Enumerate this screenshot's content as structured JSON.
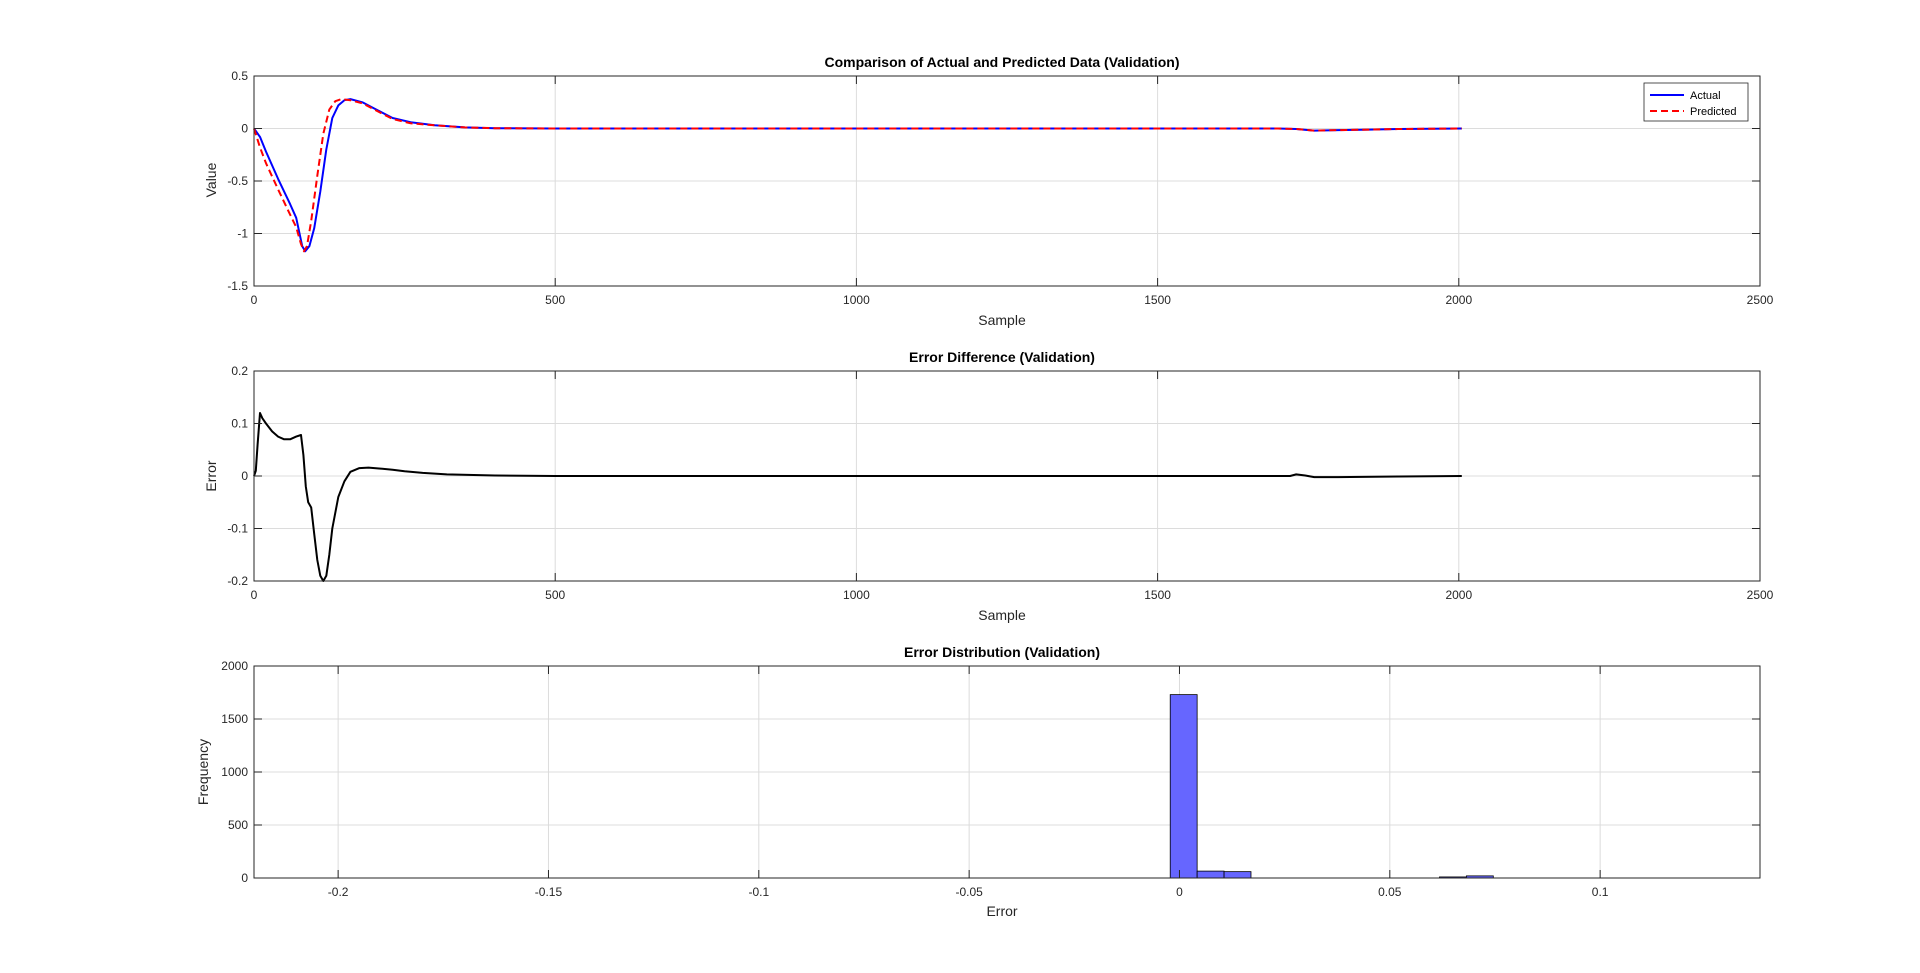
{
  "chart_data": [
    {
      "type": "line",
      "title": "Comparison of Actual and Predicted Data (Validation)",
      "xlabel": "Sample",
      "ylabel": "Value",
      "xlim": [
        0,
        2500
      ],
      "ylim": [
        -1.5,
        0.5
      ],
      "xticks": [
        0,
        500,
        1000,
        1500,
        2000,
        2500
      ],
      "yticks": [
        -1.5,
        -1,
        -0.5,
        0,
        0.5
      ],
      "grid": true,
      "legend_position": "top-right",
      "series": [
        {
          "name": "Actual",
          "color": "#0000ff",
          "style": "solid",
          "points": [
            [
              0,
              0
            ],
            [
              10,
              -0.08
            ],
            [
              20,
              -0.22
            ],
            [
              40,
              -0.48
            ],
            [
              60,
              -0.72
            ],
            [
              70,
              -0.85
            ],
            [
              80,
              -1.12
            ],
            [
              85,
              -1.17
            ],
            [
              92,
              -1.12
            ],
            [
              100,
              -0.95
            ],
            [
              110,
              -0.6
            ],
            [
              120,
              -0.2
            ],
            [
              130,
              0.1
            ],
            [
              140,
              0.22
            ],
            [
              150,
              0.27
            ],
            [
              160,
              0.28
            ],
            [
              180,
              0.25
            ],
            [
              200,
              0.19
            ],
            [
              230,
              0.1
            ],
            [
              260,
              0.06
            ],
            [
              300,
              0.03
            ],
            [
              350,
              0.01
            ],
            [
              400,
              0.003
            ],
            [
              500,
              0
            ],
            [
              1000,
              0
            ],
            [
              1500,
              0
            ],
            [
              1700,
              0
            ],
            [
              1730,
              -0.005
            ],
            [
              1760,
              -0.02
            ],
            [
              1800,
              -0.015
            ],
            [
              1850,
              -0.01
            ],
            [
              1900,
              -0.005
            ],
            [
              2005,
              0
            ]
          ]
        },
        {
          "name": "Predicted",
          "color": "#ff0000",
          "style": "dashed",
          "points": [
            [
              0,
              0
            ],
            [
              10,
              -0.18
            ],
            [
              20,
              -0.33
            ],
            [
              40,
              -0.58
            ],
            [
              60,
              -0.82
            ],
            [
              70,
              -0.94
            ],
            [
              78,
              -1.1
            ],
            [
              83,
              -1.17
            ],
            [
              88,
              -1.12
            ],
            [
              95,
              -0.88
            ],
            [
              105,
              -0.45
            ],
            [
              115,
              -0.05
            ],
            [
              125,
              0.18
            ],
            [
              135,
              0.26
            ],
            [
              145,
              0.28
            ],
            [
              160,
              0.27
            ],
            [
              180,
              0.24
            ],
            [
              200,
              0.18
            ],
            [
              230,
              0.09
            ],
            [
              260,
              0.05
            ],
            [
              300,
              0.03
            ],
            [
              350,
              0.01
            ],
            [
              400,
              0.003
            ],
            [
              500,
              0
            ],
            [
              1000,
              0
            ],
            [
              1500,
              0
            ],
            [
              1700,
              0
            ],
            [
              1730,
              -0.005
            ],
            [
              1760,
              -0.02
            ],
            [
              1800,
              -0.015
            ],
            [
              1850,
              -0.01
            ],
            [
              1900,
              -0.005
            ],
            [
              2005,
              0
            ]
          ]
        }
      ]
    },
    {
      "type": "line",
      "title": "Error Difference (Validation)",
      "xlabel": "Sample",
      "ylabel": "Error",
      "xlim": [
        0,
        2500
      ],
      "ylim": [
        -0.2,
        0.2
      ],
      "xticks": [
        0,
        500,
        1000,
        1500,
        2000,
        2500
      ],
      "yticks": [
        -0.2,
        -0.1,
        0,
        0.1,
        0.2
      ],
      "grid": true,
      "series": [
        {
          "color": "#000000",
          "style": "solid",
          "points": [
            [
              0,
              0
            ],
            [
              3,
              0.01
            ],
            [
              6,
              0.06
            ],
            [
              10,
              0.12
            ],
            [
              14,
              0.11
            ],
            [
              20,
              0.1
            ],
            [
              30,
              0.085
            ],
            [
              40,
              0.075
            ],
            [
              50,
              0.07
            ],
            [
              60,
              0.07
            ],
            [
              70,
              0.075
            ],
            [
              78,
              0.078
            ],
            [
              82,
              0.04
            ],
            [
              86,
              -0.02
            ],
            [
              90,
              -0.05
            ],
            [
              95,
              -0.06
            ],
            [
              100,
              -0.11
            ],
            [
              105,
              -0.16
            ],
            [
              110,
              -0.19
            ],
            [
              115,
              -0.2
            ],
            [
              120,
              -0.19
            ],
            [
              125,
              -0.15
            ],
            [
              130,
              -0.1
            ],
            [
              140,
              -0.04
            ],
            [
              150,
              -0.01
            ],
            [
              160,
              0.008
            ],
            [
              175,
              0.015
            ],
            [
              190,
              0.016
            ],
            [
              210,
              0.014
            ],
            [
              230,
              0.012
            ],
            [
              250,
              0.009
            ],
            [
              280,
              0.006
            ],
            [
              320,
              0.003
            ],
            [
              400,
              0.001
            ],
            [
              500,
              0
            ],
            [
              1000,
              0
            ],
            [
              1500,
              0
            ],
            [
              1720,
              0
            ],
            [
              1730,
              0.003
            ],
            [
              1745,
              0.001
            ],
            [
              1760,
              -0.002
            ],
            [
              1800,
              -0.002
            ],
            [
              1900,
              -0.001
            ],
            [
              2005,
              0
            ]
          ]
        }
      ]
    },
    {
      "type": "bar",
      "title": "Error Distribution (Validation)",
      "xlabel": "Error",
      "ylabel": "Frequency",
      "xlim": [
        -0.22,
        0.138
      ],
      "ylim": [
        0,
        2000
      ],
      "xticks": [
        -0.2,
        -0.15,
        -0.1,
        -0.05,
        0,
        0.05,
        0.1
      ],
      "yticks": [
        0,
        500,
        1000,
        1500,
        2000
      ],
      "grid": true,
      "bar_color": "#6666ff",
      "bins": [
        {
          "x0": -0.0022,
          "x1": 0.0042,
          "count": 1730
        },
        {
          "x0": 0.0042,
          "x1": 0.0106,
          "count": 65
        },
        {
          "x0": 0.0106,
          "x1": 0.017,
          "count": 60
        },
        {
          "x0": 0.0618,
          "x1": 0.0682,
          "count": 10
        },
        {
          "x0": 0.0682,
          "x1": 0.0746,
          "count": 20
        }
      ]
    }
  ]
}
